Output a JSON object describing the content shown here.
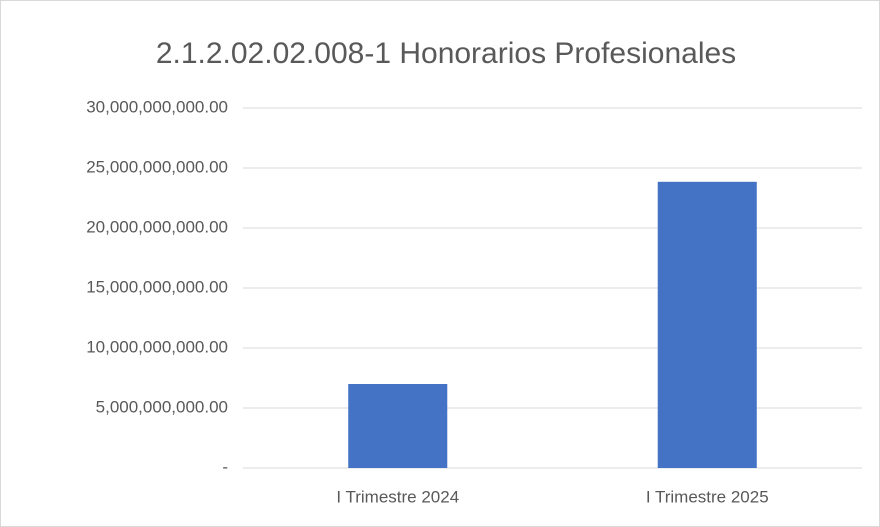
{
  "chart_data": {
    "type": "bar",
    "title": "2.1.2.02.02.008-1 Honorarios Profesionales",
    "categories": [
      "I Trimestre 2024",
      "I Trimestre 2025"
    ],
    "values": [
      7000000000,
      23850000000
    ],
    "color": "#4472c4",
    "ylim": [
      0,
      30000000000
    ],
    "yticks": [
      {
        "value": 0,
        "label": "-"
      },
      {
        "value": 5000000000,
        "label": "5,000,000,000.00"
      },
      {
        "value": 10000000000,
        "label": "10,000,000,000.00"
      },
      {
        "value": 15000000000,
        "label": "15,000,000,000.00"
      },
      {
        "value": 20000000000,
        "label": "20,000,000,000.00"
      },
      {
        "value": 25000000000,
        "label": "25,000,000,000.00"
      },
      {
        "value": 30000000000,
        "label": "30,000,000,000.00"
      }
    ],
    "grid": true
  }
}
